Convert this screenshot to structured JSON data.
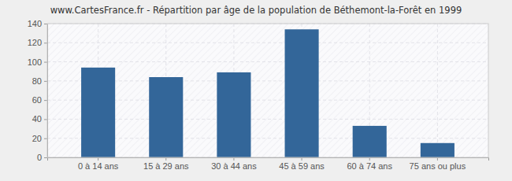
{
  "chart_data": {
    "type": "bar",
    "title": "www.CartesFrance.fr - Répartition par âge de la population de Béthemont-la-Forêt en 1999",
    "categories": [
      "0 à 14 ans",
      "15 à 29 ans",
      "30 à 44 ans",
      "45 à 59 ans",
      "60 à 74 ans",
      "75 ans ou plus"
    ],
    "values": [
      94,
      84,
      89,
      134,
      33,
      15
    ],
    "color": "#336699",
    "ylim": [
      0,
      140
    ],
    "yticks": [
      0,
      20,
      40,
      60,
      80,
      100,
      120,
      140
    ],
    "grid": true
  }
}
